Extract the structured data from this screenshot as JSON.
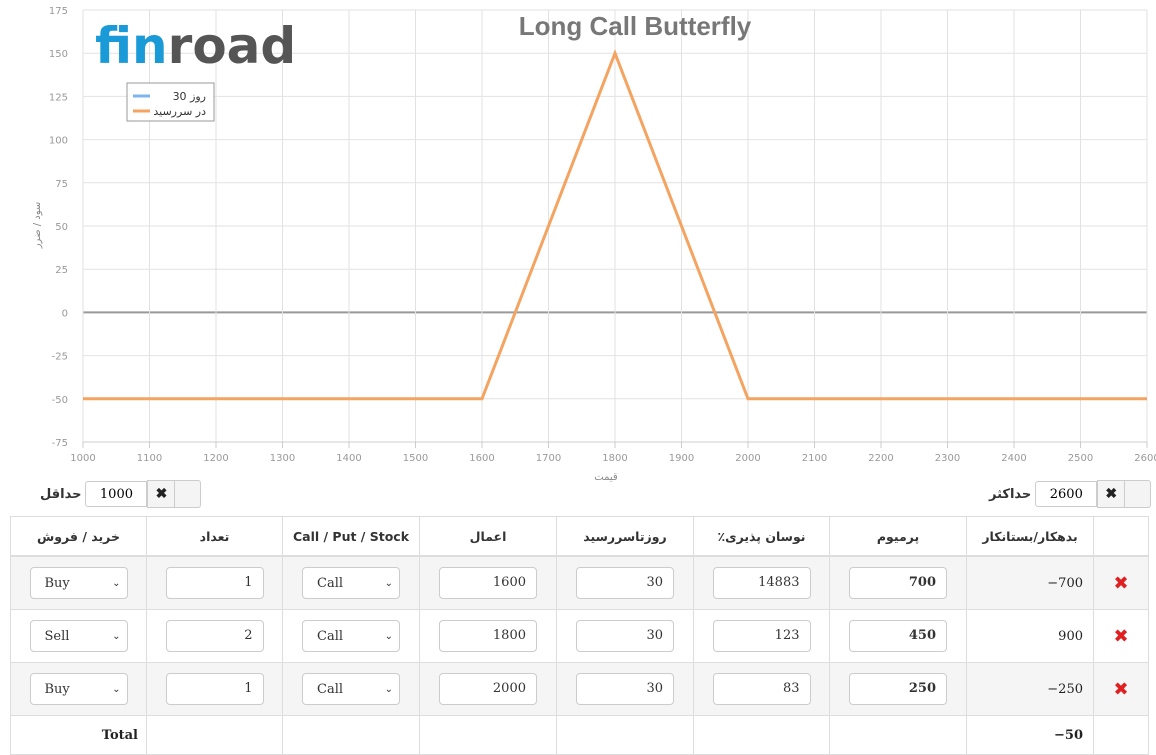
{
  "logo": {
    "part1": "fin",
    "part2": "road"
  },
  "chart_data": {
    "type": "line",
    "title": "Long Call Butterfly",
    "xlabel": "قیمت",
    "ylabel": "سود / ضرر",
    "xlim": [
      1000,
      2600
    ],
    "ylim": [
      -75,
      175
    ],
    "x_ticks": [
      1000,
      1100,
      1200,
      1300,
      1400,
      1500,
      1600,
      1700,
      1800,
      1900,
      2000,
      2100,
      2200,
      2300,
      2400,
      2500,
      2600
    ],
    "y_ticks": [
      175,
      150,
      125,
      100,
      75,
      50,
      25,
      0,
      -25,
      -50,
      -75
    ],
    "grid": true,
    "legend_position": "top-left",
    "series": [
      {
        "name": "30 روز",
        "color": "#7cb5ec",
        "x": [],
        "y": []
      },
      {
        "name": "در سررسید",
        "color": "#f4a460",
        "x": [
          1000,
          1600,
          1800,
          2000,
          2600
        ],
        "y": [
          -50,
          -50,
          150,
          -50,
          -50
        ]
      }
    ],
    "zero_line_color": "#999999"
  },
  "controls": {
    "max_label": "حداکثر",
    "max_value": "2600",
    "min_label": "حداقل",
    "min_value": "1000",
    "clear_icon": "✖"
  },
  "table": {
    "headers": {
      "balance": "بدهکار/بستانکار",
      "premium": "پرمیوم",
      "volatility": "٪نوسان پذیری",
      "days": "روزتاسررسید",
      "strike": "اعمال",
      "type": "Call / Put / Stock",
      "qty": "تعداد",
      "side": "خرید / فروش"
    },
    "rows": [
      {
        "balance": "−700",
        "premium": "700",
        "volatility": "14883",
        "days": "30",
        "strike": "1600",
        "type": "Call",
        "qty": "1",
        "side": "Buy"
      },
      {
        "balance": "900",
        "premium": "450",
        "volatility": "123",
        "days": "30",
        "strike": "1800",
        "type": "Call",
        "qty": "2",
        "side": "Sell"
      },
      {
        "balance": "−250",
        "premium": "250",
        "volatility": "83",
        "days": "30",
        "strike": "2000",
        "type": "Call",
        "qty": "1",
        "side": "Buy"
      }
    ],
    "total_label": "Total",
    "total_value": "−50",
    "delete_icon": "✖"
  }
}
